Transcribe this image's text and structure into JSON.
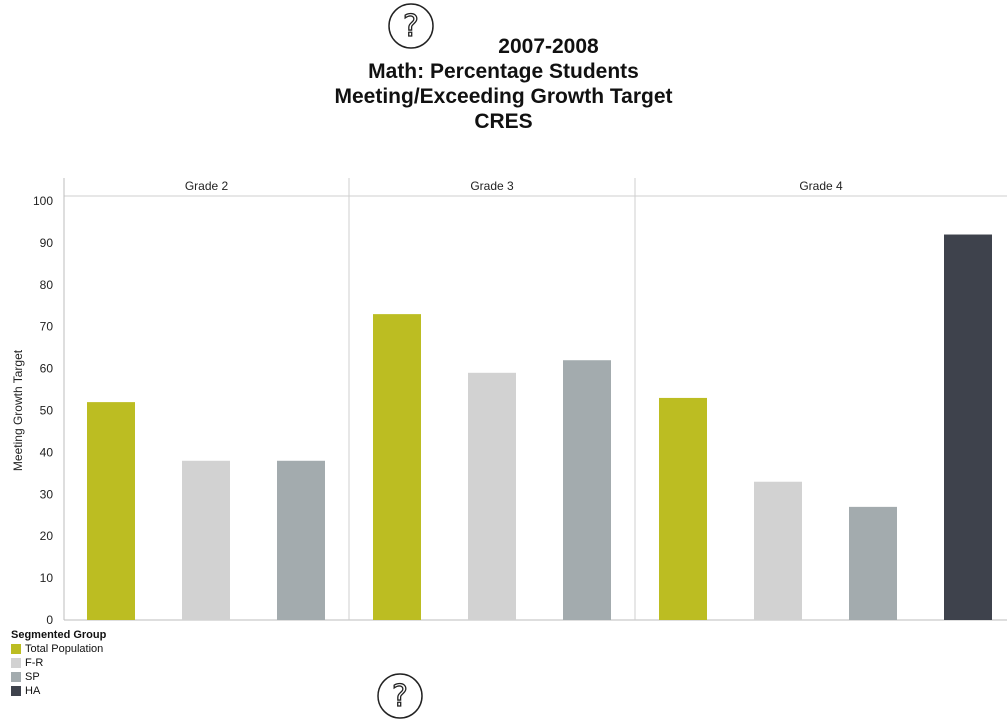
{
  "header": {
    "title_lines": [
      "2007-2008",
      "Math: Percentage Students",
      "Meeting/Exceeding Growth Target",
      "CRES"
    ]
  },
  "chart_data": {
    "type": "bar",
    "title": "2007-2008 Math: Percentage Students Meeting/Exceeding Growth Target CRES",
    "ylabel": "Meeting Growth Target",
    "xlabel": "",
    "ylim": [
      0,
      100
    ],
    "yticks": [
      0,
      10,
      20,
      30,
      40,
      50,
      60,
      70,
      80,
      90,
      100
    ],
    "grid": false,
    "legend_placement": "bottom-left",
    "panels": [
      "Grade 2",
      "Grade 3",
      "Grade 4"
    ],
    "legend_title": "Segmented Group",
    "series": [
      {
        "name": "Total Population",
        "color": "#bcbd22",
        "values": [
          52,
          73,
          53
        ]
      },
      {
        "name": "F-R",
        "color": "#d2d2d2",
        "values": [
          38,
          59,
          33
        ]
      },
      {
        "name": "SP",
        "color": "#a3abae",
        "values": [
          38,
          62,
          27
        ]
      },
      {
        "name": "HA",
        "color": "#3e424c",
        "values": [
          null,
          null,
          92
        ]
      }
    ]
  }
}
